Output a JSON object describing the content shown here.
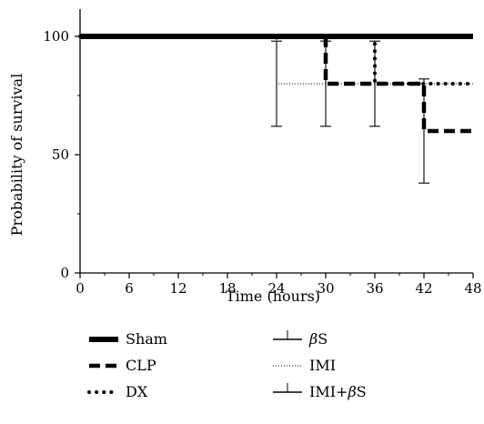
{
  "chart_data": {
    "type": "line",
    "subtype": "kaplan-meier survival (step)",
    "xlabel": "Time (hours)",
    "ylabel": "Probability of survival",
    "xlim": [
      0,
      48
    ],
    "ylim": [
      0,
      110
    ],
    "x_ticks": [
      "0",
      "6",
      "12",
      "18",
      "24",
      "30",
      "36",
      "42",
      "48"
    ],
    "y_ticks": [
      "0",
      "50",
      "100"
    ],
    "grid": false,
    "legend_placement": "bottom",
    "series": [
      {
        "name": "Sham",
        "line_style": "thick-solid",
        "points": [
          [
            0,
            100
          ],
          [
            48,
            100
          ]
        ]
      },
      {
        "name": "CLP",
        "line_style": "thick-dashed",
        "points": [
          [
            0,
            100
          ],
          [
            30,
            100
          ],
          [
            30,
            80
          ],
          [
            42,
            80
          ],
          [
            42,
            60
          ],
          [
            48,
            60
          ]
        ]
      },
      {
        "name": "DX",
        "line_style": "dotted",
        "points": [
          [
            0,
            100
          ],
          [
            36,
            100
          ],
          [
            36,
            80
          ],
          [
            48,
            80
          ]
        ]
      },
      {
        "name": "βS",
        "line_style": "thin-solid",
        "points": [
          [
            0,
            100
          ],
          [
            48,
            100
          ]
        ]
      },
      {
        "name": "IMI",
        "line_style": "fine-dotted",
        "points": [
          [
            0,
            100
          ],
          [
            24,
            100
          ],
          [
            24,
            80
          ],
          [
            48,
            80
          ]
        ]
      },
      {
        "name": "IMI+βS",
        "line_style": "thin-solid",
        "points": [
          [
            0,
            100
          ],
          [
            48,
            100
          ]
        ]
      }
    ],
    "error_bars": [
      {
        "x": 24,
        "low": 62,
        "high": 98
      },
      {
        "x": 30,
        "low": 62,
        "high": 98
      },
      {
        "x": 36,
        "low": 62,
        "high": 98
      },
      {
        "x": 42,
        "low": 38,
        "high": 82
      }
    ]
  },
  "legend": {
    "left": [
      {
        "label": "Sham",
        "style": "thick-solid"
      },
      {
        "label": "CLP",
        "style": "thick-dashed"
      },
      {
        "label": "DX",
        "style": "dotted"
      }
    ],
    "right": [
      {
        "label_prefix": "",
        "label_italic": "β",
        "label_suffix": "S",
        "style": "thin-solid"
      },
      {
        "label_prefix": "IMI",
        "label_italic": "",
        "label_suffix": "",
        "style": "fine-dotted"
      },
      {
        "label_prefix": "IMI+",
        "label_italic": "β",
        "label_suffix": "S",
        "style": "thin-solid"
      }
    ]
  }
}
